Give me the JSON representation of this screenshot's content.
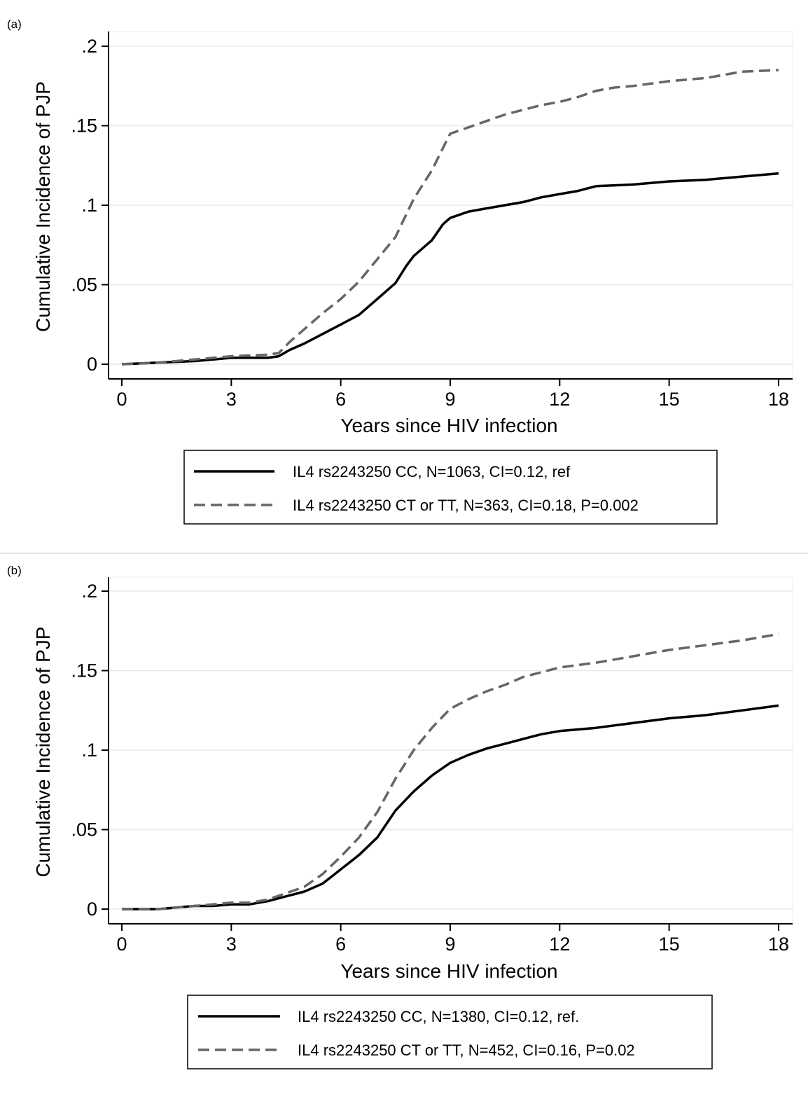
{
  "chart_data": [
    {
      "type": "line",
      "panel_label": "(a)",
      "xlabel": "Years since HIV infection",
      "ylabel": "Cumulative Incidence of PJP",
      "xlim": [
        0,
        18
      ],
      "ylim": [
        0,
        0.2
      ],
      "x_ticks": [
        0,
        3,
        6,
        9,
        12,
        15,
        18
      ],
      "x_tick_labels": [
        "0",
        "3",
        "6",
        "9",
        "12",
        "15",
        "18"
      ],
      "y_ticks": [
        0,
        0.05,
        0.1,
        0.15,
        0.2
      ],
      "y_tick_labels": [
        "0",
        ".05",
        ".1",
        ".15",
        ".2"
      ],
      "grid": "horizontal",
      "legend_position": "bottom",
      "series": [
        {
          "name": "IL4 rs2243250 CC, N=1063, CI=0.12, ref",
          "style": "solid",
          "color": "#000000",
          "x": [
            0,
            1,
            2,
            2.5,
            3,
            4,
            4.3,
            4.6,
            5,
            5.5,
            6,
            6.5,
            7,
            7.5,
            7.8,
            8,
            8.5,
            8.8,
            9,
            9.5,
            10,
            10.5,
            11,
            11.5,
            12,
            12.5,
            13,
            14,
            15,
            16,
            17,
            18
          ],
          "y": [
            0,
            0.001,
            0.002,
            0.003,
            0.004,
            0.004,
            0.005,
            0.009,
            0.013,
            0.019,
            0.025,
            0.031,
            0.041,
            0.051,
            0.062,
            0.068,
            0.078,
            0.088,
            0.092,
            0.096,
            0.098,
            0.1,
            0.102,
            0.105,
            0.107,
            0.109,
            0.112,
            0.113,
            0.115,
            0.116,
            0.118,
            0.12
          ]
        },
        {
          "name": "IL4 rs2243250 CT or TT, N=363, CI=0.18, P=0.002",
          "style": "dashed",
          "color": "#666666",
          "x": [
            0,
            1,
            2,
            2.5,
            3,
            4,
            4.3,
            4.6,
            5,
            5.5,
            6,
            6.5,
            7,
            7.5,
            8,
            8.5,
            8.8,
            9,
            9.5,
            10,
            10.5,
            11,
            11.5,
            12,
            12.5,
            13,
            13.5,
            14,
            15,
            16,
            17,
            18
          ],
          "y": [
            0,
            0.001,
            0.003,
            0.004,
            0.005,
            0.006,
            0.007,
            0.014,
            0.022,
            0.032,
            0.041,
            0.052,
            0.066,
            0.08,
            0.104,
            0.122,
            0.136,
            0.145,
            0.149,
            0.153,
            0.157,
            0.16,
            0.163,
            0.165,
            0.168,
            0.172,
            0.174,
            0.175,
            0.178,
            0.18,
            0.184,
            0.185
          ]
        }
      ]
    },
    {
      "type": "line",
      "panel_label": "(b)",
      "xlabel": "Years since HIV infection",
      "ylabel": "Cumulative Incidence of PJP",
      "xlim": [
        0,
        18
      ],
      "ylim": [
        0,
        0.2
      ],
      "x_ticks": [
        0,
        3,
        6,
        9,
        12,
        15,
        18
      ],
      "x_tick_labels": [
        "0",
        "3",
        "6",
        "9",
        "12",
        "15",
        "18"
      ],
      "y_ticks": [
        0,
        0.05,
        0.1,
        0.15,
        0.2
      ],
      "y_tick_labels": [
        "0",
        ".05",
        ".1",
        ".15",
        ".2"
      ],
      "grid": "horizontal",
      "legend_position": "bottom",
      "series": [
        {
          "name": "IL4 rs2243250 CC, N=1380, CI=0.12,  ref.",
          "style": "solid",
          "color": "#000000",
          "x": [
            0,
            1,
            1.5,
            2,
            2.5,
            3,
            3.5,
            4,
            4.5,
            5,
            5.5,
            6,
            6.5,
            7,
            7.5,
            8,
            8.5,
            9,
            9.5,
            10,
            10.5,
            11,
            11.5,
            12,
            13,
            14,
            15,
            16,
            17,
            18
          ],
          "y": [
            0,
            0,
            0.001,
            0.002,
            0.002,
            0.003,
            0.003,
            0.005,
            0.008,
            0.011,
            0.016,
            0.025,
            0.034,
            0.045,
            0.062,
            0.074,
            0.084,
            0.092,
            0.097,
            0.101,
            0.104,
            0.107,
            0.11,
            0.112,
            0.114,
            0.117,
            0.12,
            0.122,
            0.125,
            0.128
          ]
        },
        {
          "name": "IL4 rs2243250 CT or TT, N=452, CI=0.16, P=0.02",
          "style": "dashed",
          "color": "#666666",
          "x": [
            0,
            1,
            1.5,
            2,
            2.5,
            3,
            3.5,
            4,
            4.5,
            5,
            5.5,
            6,
            6.5,
            7,
            7.5,
            8,
            8.5,
            9,
            9.5,
            10,
            10.5,
            11,
            11.5,
            12,
            13,
            14,
            15,
            16,
            17,
            18
          ],
          "y": [
            0,
            0,
            0.001,
            0.002,
            0.003,
            0.004,
            0.004,
            0.006,
            0.01,
            0.014,
            0.022,
            0.033,
            0.045,
            0.061,
            0.082,
            0.1,
            0.114,
            0.126,
            0.132,
            0.137,
            0.141,
            0.146,
            0.149,
            0.152,
            0.155,
            0.159,
            0.163,
            0.166,
            0.169,
            0.173
          ]
        }
      ]
    }
  ]
}
